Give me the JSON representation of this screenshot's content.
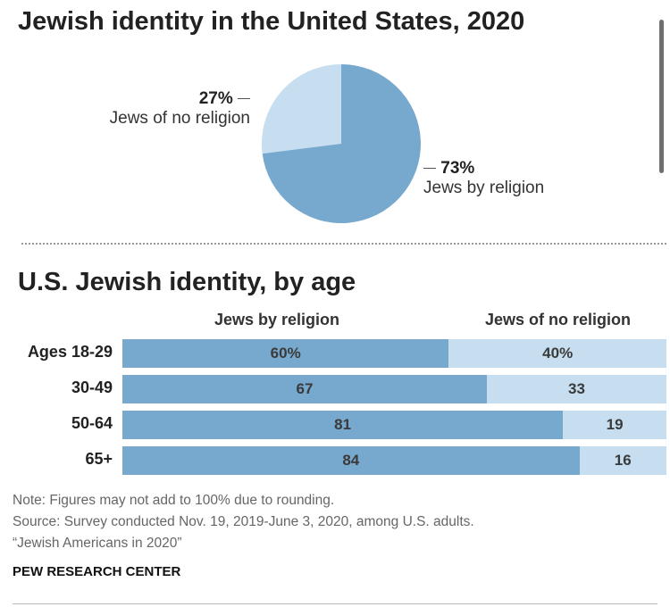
{
  "header": {
    "title": "Jewish identity in the United States, 2020"
  },
  "pie": {
    "slices": [
      {
        "name": "Jews by religion",
        "pct_label": "73%",
        "value": 73,
        "color": "#77a8cd"
      },
      {
        "name": "Jews of no religion",
        "pct_label": "27%",
        "value": 27,
        "color": "#c6def0"
      }
    ]
  },
  "bars": {
    "title": "U.S. Jewish identity, by age",
    "col_rel": "Jews by religion",
    "col_norel": "Jews of no religion",
    "rows": [
      {
        "label": "Ages 18-29",
        "rel": 60,
        "norel": 40,
        "rel_label": "60%",
        "norel_label": "40%"
      },
      {
        "label": "30-49",
        "rel": 67,
        "norel": 33,
        "rel_label": "67",
        "norel_label": "33"
      },
      {
        "label": "50-64",
        "rel": 81,
        "norel": 19,
        "rel_label": "81",
        "norel_label": "19"
      },
      {
        "label": "65+",
        "rel": 84,
        "norel": 16,
        "rel_label": "84",
        "norel_label": "16"
      }
    ]
  },
  "notes": {
    "note": "Note: Figures may not add to 100% due to rounding.",
    "source": "Source: Survey conducted Nov. 19, 2019-June 3, 2020, among U.S. adults.",
    "report": "“Jewish Americans in 2020”",
    "brand": "PEW RESEARCH CENTER"
  },
  "chart_data": [
    {
      "type": "pie",
      "title": "Jewish identity in the United States, 2020",
      "categories": [
        "Jews by religion",
        "Jews of no religion"
      ],
      "values": [
        73,
        27
      ],
      "colors": [
        "#77a8cd",
        "#c6def0"
      ]
    },
    {
      "type": "bar",
      "title": "U.S. Jewish identity, by age",
      "orientation": "horizontal",
      "stacked": true,
      "categories": [
        "Ages 18-29",
        "30-49",
        "50-64",
        "65+"
      ],
      "series": [
        {
          "name": "Jews by religion",
          "values": [
            60,
            67,
            81,
            84
          ],
          "color": "#77a8cd"
        },
        {
          "name": "Jews of no religion",
          "values": [
            40,
            33,
            19,
            16
          ],
          "color": "#c6def0"
        }
      ],
      "xlim": [
        0,
        100
      ]
    }
  ]
}
